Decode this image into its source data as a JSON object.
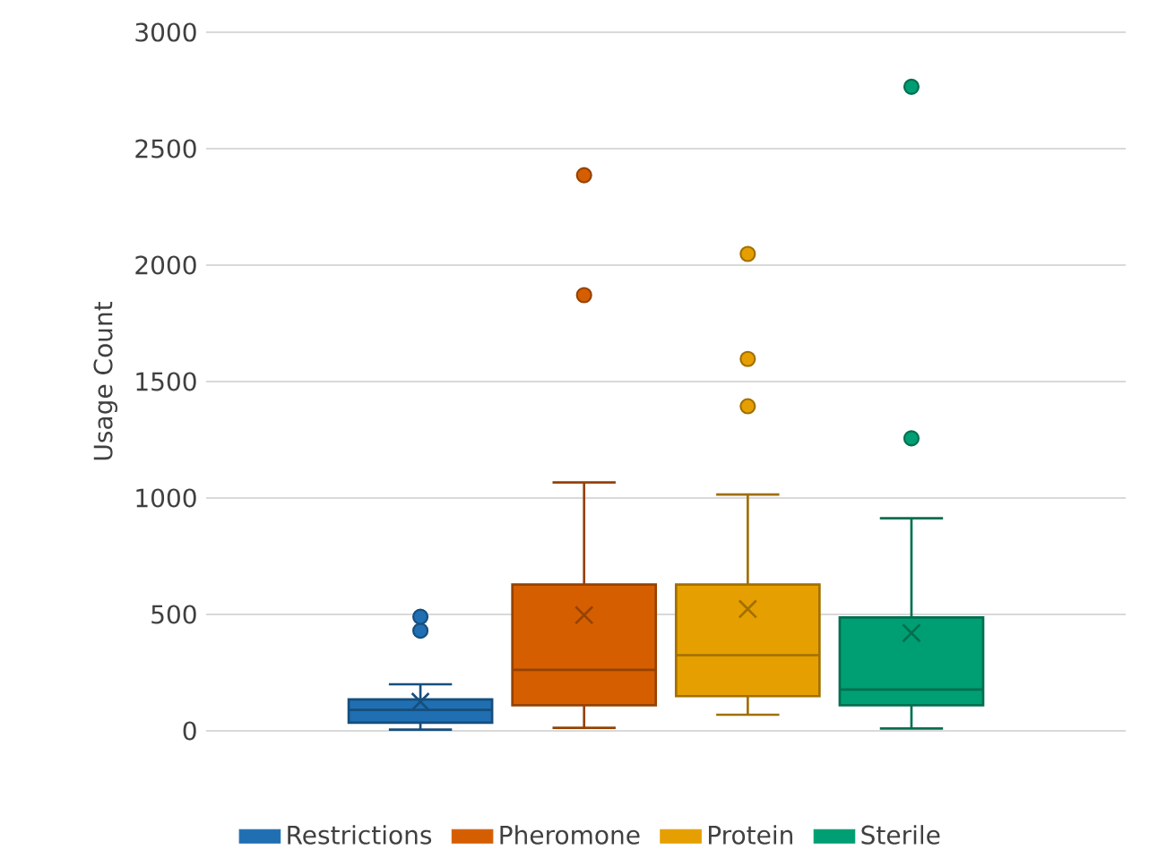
{
  "chart_data": {
    "type": "box",
    "ylabel": "Usage Count",
    "categories": [
      null
    ],
    "ylim": [
      0,
      3000
    ],
    "yticks": [
      0,
      500,
      1000,
      1500,
      2000,
      2500,
      3000
    ],
    "grid": "y",
    "legend": "bottom",
    "marker": "circle",
    "series": [
      {
        "name": "Restrictions",
        "color": "#1f6fb2",
        "boxes": [
          {
            "low": 5,
            "q1": 35,
            "median": 90,
            "q3": 135,
            "high": 200,
            "mean": 125,
            "outliers": [
              430,
              490
            ]
          }
        ]
      },
      {
        "name": "Pheromone",
        "color": "#d55e00",
        "boxes": [
          {
            "low": 13,
            "q1": 110,
            "median": 262,
            "q3": 628,
            "high": 1067,
            "mean": 497,
            "outliers": [
              1871,
              2386
            ]
          }
        ]
      },
      {
        "name": "Protein",
        "color": "#e69f00",
        "boxes": [
          {
            "low": 69,
            "q1": 149,
            "median": 325,
            "q3": 628,
            "high": 1015,
            "mean": 523,
            "outliers": [
              1394,
              1597,
              2048
            ]
          }
        ]
      },
      {
        "name": "Sterile",
        "color": "#009e73",
        "boxes": [
          {
            "low": 10,
            "q1": 110,
            "median": 177,
            "q3": 487,
            "high": 913,
            "mean": 420,
            "outliers": [
              1256,
              2766
            ]
          }
        ]
      }
    ]
  }
}
